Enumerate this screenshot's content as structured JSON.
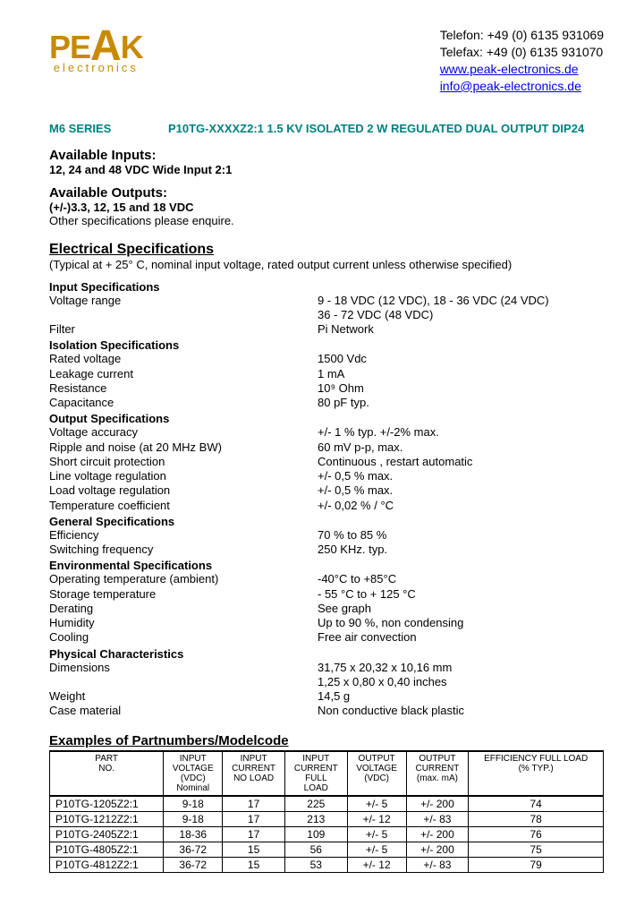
{
  "logo": {
    "brand_top": "PE",
    "brand_a": "A",
    "brand_end": "K",
    "brand_sub": "electronics"
  },
  "contact": {
    "phone": "Telefon: +49 (0) 6135 931069",
    "fax": "Telefax: +49 (0) 6135 931070",
    "web": "www.peak-electronics.de",
    "email": "info@peak-electronics.de"
  },
  "series": {
    "label": "M6 SERIES",
    "part": "P10TG-XXXXZ2:1   1.5 KV ISOLATED 2 W REGULATED DUAL OUTPUT DIP24"
  },
  "avail": {
    "inputs_head": "Available Inputs:",
    "inputs_text": "12, 24 and 48 VDC Wide Input 2:1",
    "outputs_head": "Available Outputs:",
    "outputs_text": "(+/-)3.3, 12, 15 and 18 VDC",
    "note": "Other specifications please enquire."
  },
  "elec": {
    "head": "Electrical Specifications",
    "note": "(Typical at + 25° C, nominal input voltage, rated output current unless otherwise specified)"
  },
  "specs": {
    "input_head": "Input Specifications",
    "voltage_range_l": "Voltage range",
    "voltage_range_v1": "9 - 18 VDC (12 VDC), 18 - 36 VDC (24 VDC)",
    "voltage_range_v2": "36 - 72 VDC (48 VDC)",
    "filter_l": "Filter",
    "filter_v": "Pi Network",
    "iso_head": "Isolation Specifications",
    "rated_l": "Rated voltage",
    "rated_v": "1500 Vdc",
    "leak_l": "Leakage current",
    "leak_v": "1 mA",
    "res_l": "Resistance",
    "res_v": "10⁹ Ohm",
    "cap_l": "Capacitance",
    "cap_v": "80 pF typ.",
    "out_head": "Output Specifications",
    "vacc_l": "Voltage accuracy",
    "vacc_v": "+/- 1 % typ. +/-2% max.",
    "ripple_l": "Ripple and noise (at 20 MHz BW)",
    "ripple_v": "60 mV p-p, max.",
    "short_l": "Short circuit protection",
    "short_v": "Continuous , restart automatic",
    "linereg_l": "Line voltage regulation",
    "linereg_v": "+/- 0,5 % max.",
    "loadreg_l": "Load voltage regulation",
    "loadreg_v": "+/- 0,5 % max.",
    "temp_l": "Temperature coefficient",
    "temp_v": "+/- 0,02 % / °C",
    "gen_head": "General Specifications",
    "eff_l": "Efficiency",
    "eff_v": "70 % to 85 %",
    "sw_l": "Switching frequency",
    "sw_v": "250 KHz. typ.",
    "env_head": "Environmental Specifications",
    "optemp_l": "Operating temperature (ambient)",
    "optemp_v": "-40°C to +85°C",
    "storetemp_l": "Storage temperature",
    "storetemp_v": "- 55 °C to + 125 °C",
    "derate_l": "Derating",
    "derate_v": "See graph",
    "hum_l": "Humidity",
    "hum_v": "Up to 90 %, non condensing",
    "cool_l": "Cooling",
    "cool_v": "Free air convection",
    "phys_head": "Physical Characteristics",
    "dim_l": "Dimensions",
    "dim_v1": "31,75 x 20,32 x 10,16 mm",
    "dim_v2": "1,25 x 0,80 x 0,40 inches",
    "weight_l": "Weight",
    "weight_v": "14,5 g",
    "case_l": "Case material",
    "case_v": "Non conductive black plastic"
  },
  "table": {
    "head": "Examples of Partnumbers/Modelcode",
    "columns": [
      "PART\nNO.",
      "INPUT\nVOLTAGE\n(VDC)\nNominal",
      "INPUT\nCURRENT\nNO LOAD",
      "INPUT\nCURRENT\nFULL\nLOAD",
      "OUTPUT\nVOLTAGE\n(VDC)",
      "OUTPUT\nCURRENT\n(max. mA)",
      "EFFICIENCY FULL LOAD\n(% TYP.)"
    ],
    "rows": [
      [
        "P10TG-1205Z2:1",
        "9-18",
        "17",
        "225",
        "+/- 5",
        "+/- 200",
        "74"
      ],
      [
        "P10TG-1212Z2:1",
        "9-18",
        "17",
        "213",
        "+/- 12",
        "+/- 83",
        "78"
      ],
      [
        "P10TG-2405Z2:1",
        "18-36",
        "17",
        "109",
        "+/- 5",
        "+/- 200",
        "76"
      ],
      [
        "P10TG-4805Z2:1",
        "36-72",
        "15",
        "56",
        "+/- 5",
        "+/- 200",
        "75"
      ],
      [
        "P10TG-4812Z2:1",
        "36-72",
        "15",
        "53",
        "+/- 12",
        "+/- 83",
        "79"
      ]
    ]
  }
}
